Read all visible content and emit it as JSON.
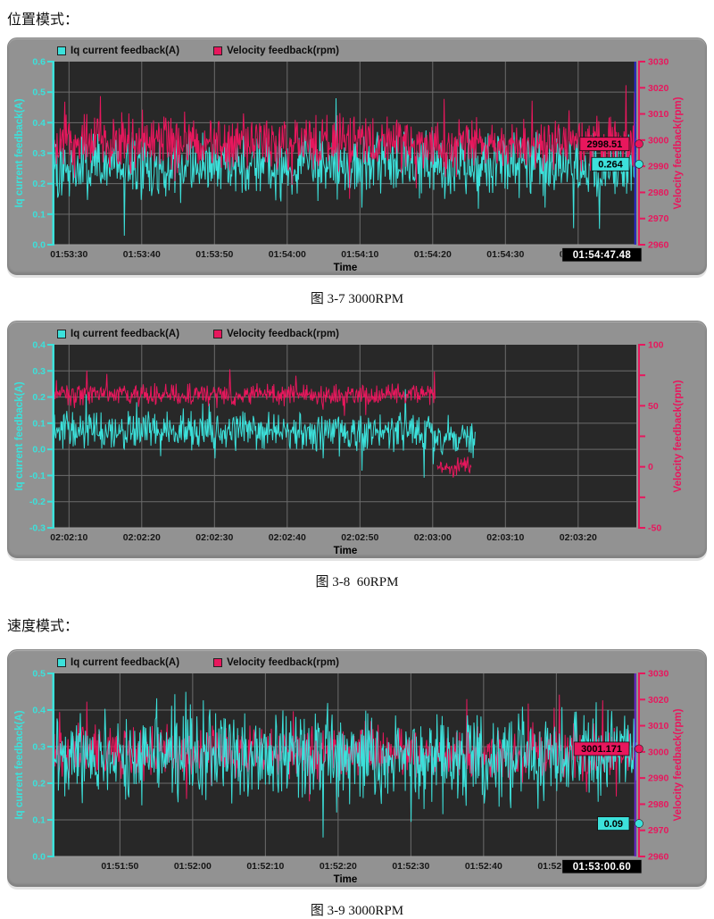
{
  "page": {
    "section1_label": "位置模式：",
    "section2_label": "速度模式："
  },
  "colors": {
    "cyan": "#3CE1DB",
    "crimson": "#E8175D",
    "plot_bg": "#282828",
    "grid": "#6C6C6C",
    "panel_bg": "#929292",
    "x_label": "#161616",
    "timestamp_bg": "#000000",
    "timestamp_fg": "#ffffff"
  },
  "chart_data": [
    {
      "type": "line",
      "caption": "图 3-7 3000RPM",
      "xlabel": "Time",
      "legend": {
        "current": "Iq current feedback(A)",
        "velocity": "Velocity feedback(rpm)"
      },
      "left_axis": {
        "label": "Iq current feedback(A)",
        "min": 0.0,
        "max": 0.6,
        "color": "#3CE1DB",
        "ticks": [
          {
            "v": 0.6,
            "label": "0.6"
          },
          {
            "v": 0.5,
            "label": "0.5"
          },
          {
            "v": 0.4,
            "label": "0.4"
          },
          {
            "v": 0.3,
            "label": "0.3"
          },
          {
            "v": 0.2,
            "label": "0.2"
          },
          {
            "v": 0.1,
            "label": "0.1"
          },
          {
            "v": 0.0,
            "label": "0.0"
          }
        ]
      },
      "right_axis": {
        "label": "Velocity feedback(rpm)",
        "min": 2960,
        "max": 3030,
        "color": "#E8175D",
        "ticks": [
          {
            "v": 3030,
            "label": "3030"
          },
          {
            "v": 3020,
            "label": "3020"
          },
          {
            "v": 3010,
            "label": "3010"
          },
          {
            "v": 3000,
            "label": "3000"
          },
          {
            "v": 2990,
            "label": "2990"
          },
          {
            "v": 2980,
            "label": "2980"
          },
          {
            "v": 2970,
            "label": "2970"
          },
          {
            "v": 2960,
            "label": "2960"
          }
        ]
      },
      "x_ticks": [
        {
          "f": 0.025,
          "label": "01:53:30"
        },
        {
          "f": 0.15,
          "label": "01:53:40"
        },
        {
          "f": 0.275,
          "label": "01:53:50"
        },
        {
          "f": 0.4,
          "label": "01:54:00"
        },
        {
          "f": 0.525,
          "label": "01:54:10"
        },
        {
          "f": 0.65,
          "label": "01:54:20"
        },
        {
          "f": 0.775,
          "label": "01:54:30"
        },
        {
          "f": 0.9,
          "label": "01:54:40"
        }
      ],
      "series": [
        {
          "name": "Iq current feedback(A)",
          "axis": "left",
          "color": "#3CE1DB",
          "seed": 101,
          "segments": [
            {
              "from": 0,
              "to": 1,
              "mean": 0.26,
              "noise": 0.075,
              "spike": 0.16,
              "min": 0.02,
              "max": 0.48
            }
          ]
        },
        {
          "name": "Velocity feedback(rpm)",
          "axis": "right",
          "color": "#E8175D",
          "seed": 202,
          "segments": [
            {
              "from": 0,
              "to": 1,
              "mean": 2999,
              "noise": 7,
              "spike": 18,
              "min": 2963,
              "max": 3024
            }
          ]
        }
      ],
      "cursor": {
        "x_frac": 0.998,
        "color": "#2B2BD0",
        "time_label": "01:54:47.48",
        "tags": [
          {
            "text": "2998.51",
            "axis": "right",
            "value": 2998.51,
            "color": "#E8175D"
          },
          {
            "text": "0.264",
            "axis": "left",
            "value": 0.264,
            "color": "#3CE1DB"
          }
        ]
      }
    },
    {
      "type": "line",
      "caption": "图 3-8  60RPM",
      "xlabel": "Time",
      "legend": {
        "current": "Iq current feedback(A)",
        "velocity": "Velocity feedback(rpm)"
      },
      "left_axis": {
        "label": "Iq current feedback(A)",
        "min": -0.3,
        "max": 0.4,
        "color": "#3CE1DB",
        "ticks": [
          {
            "v": 0.4,
            "label": "0.4"
          },
          {
            "v": 0.3,
            "label": "0.3"
          },
          {
            "v": 0.2,
            "label": "0.2"
          },
          {
            "v": 0.1,
            "label": "0.1"
          },
          {
            "v": 0.0,
            "label": "0.0"
          },
          {
            "v": -0.1,
            "label": "-0.1"
          },
          {
            "v": -0.2,
            "label": "-0.2"
          },
          {
            "v": -0.3,
            "label": "-0.3"
          }
        ]
      },
      "right_axis": {
        "label": "Velocity feedback(rpm)",
        "min": -50,
        "max": 100,
        "color": "#E8175D",
        "ticks": [
          {
            "v": 100,
            "label": "100"
          },
          {
            "v": 75,
            "label": ""
          },
          {
            "v": 50,
            "label": "50"
          },
          {
            "v": 25,
            "label": ""
          },
          {
            "v": 0,
            "label": "0"
          },
          {
            "v": -25,
            "label": ""
          },
          {
            "v": -50,
            "label": "-50"
          }
        ]
      },
      "x_ticks": [
        {
          "f": 0.025,
          "label": "02:02:10"
        },
        {
          "f": 0.15,
          "label": "02:02:20"
        },
        {
          "f": 0.275,
          "label": "02:02:30"
        },
        {
          "f": 0.4,
          "label": "02:02:40"
        },
        {
          "f": 0.525,
          "label": "02:02:50"
        },
        {
          "f": 0.65,
          "label": "02:03:00"
        },
        {
          "f": 0.775,
          "label": "02:03:10"
        },
        {
          "f": 0.9,
          "label": "02:03:20"
        }
      ],
      "series": [
        {
          "name": "Iq current feedback(A)",
          "axis": "left",
          "color": "#3CE1DB",
          "seed": 303,
          "segments": [
            {
              "from": 0,
              "to": 0.652,
              "mean": 0.07,
              "noise": 0.05,
              "spike": 0.13,
              "min": -0.18,
              "max": 0.3
            },
            {
              "from": 0.652,
              "to": 0.724,
              "mean": 0.05,
              "noise": 0.055,
              "spike": 0.13,
              "min": -0.14,
              "max": 0.16
            }
          ]
        },
        {
          "name": "Velocity feedback(rpm)",
          "axis": "right",
          "color": "#E8175D",
          "seed": 404,
          "segments": [
            {
              "from": 0,
              "to": 0.654,
              "mean": 59,
              "noise": 6,
              "spike": 15,
              "min": 32,
              "max": 92
            },
            {
              "from": 0.658,
              "to": 0.716,
              "mean": 0,
              "noise": 6,
              "spike": 10,
              "min": -17,
              "max": 12
            }
          ]
        }
      ],
      "cursor": null
    },
    {
      "type": "line",
      "caption": "图 3-9 3000RPM",
      "xlabel": "Time",
      "legend": {
        "current": "Iq current feedback(A)",
        "velocity": "Velocity feedback(rpm)"
      },
      "left_axis": {
        "label": "Iq current feedback(A)",
        "min": 0.0,
        "max": 0.5,
        "color": "#3CE1DB",
        "ticks": [
          {
            "v": 0.5,
            "label": "0.5"
          },
          {
            "v": 0.4,
            "label": "0.4"
          },
          {
            "v": 0.3,
            "label": "0.3"
          },
          {
            "v": 0.2,
            "label": "0.2"
          },
          {
            "v": 0.1,
            "label": "0.1"
          },
          {
            "v": 0.0,
            "label": "0.0"
          }
        ]
      },
      "right_axis": {
        "label": "Velocity feedback(rpm)",
        "min": 2960,
        "max": 3030,
        "color": "#E8175D",
        "ticks": [
          {
            "v": 3030,
            "label": "3030"
          },
          {
            "v": 3020,
            "label": "3020"
          },
          {
            "v": 3010,
            "label": "3010"
          },
          {
            "v": 3000,
            "label": "3000"
          },
          {
            "v": 2990,
            "label": "2990"
          },
          {
            "v": 2980,
            "label": "2980"
          },
          {
            "v": 2970,
            "label": "2970"
          },
          {
            "v": 2960,
            "label": "2960"
          }
        ]
      },
      "x_ticks": [
        {
          "f": 0.1125,
          "label": "01:51:50"
        },
        {
          "f": 0.2375,
          "label": "01:52:00"
        },
        {
          "f": 0.3625,
          "label": "01:52:10"
        },
        {
          "f": 0.4875,
          "label": "01:52:20"
        },
        {
          "f": 0.6125,
          "label": "01:52:30"
        },
        {
          "f": 0.7375,
          "label": "01:52:40"
        },
        {
          "f": 0.8625,
          "label": "01:52:50"
        }
      ],
      "series": [
        {
          "name": "Velocity feedback(rpm)",
          "axis": "right",
          "color": "#E8175D",
          "seed": 606,
          "segments": [
            {
              "from": 0,
              "to": 1,
              "mean": 3000,
              "noise": 7,
              "spike": 15,
              "min": 2963,
              "max": 3022
            }
          ]
        },
        {
          "name": "Iq current feedback(A)",
          "axis": "left",
          "color": "#3CE1DB",
          "seed": 505,
          "segments": [
            {
              "from": 0,
              "to": 1,
              "mean": 0.27,
              "noise": 0.085,
              "spike": 0.16,
              "min": 0.05,
              "max": 0.48
            }
          ]
        }
      ],
      "cursor": {
        "x_frac": 0.998,
        "color": "#6A2BD0",
        "time_label": "01:53:00.60",
        "tags": [
          {
            "text": "3001.171",
            "axis": "right",
            "value": 3001.171,
            "color": "#E8175D"
          },
          {
            "text": "0.09",
            "axis": "left",
            "value": 0.09,
            "color": "#3CE1DB"
          }
        ]
      }
    }
  ]
}
